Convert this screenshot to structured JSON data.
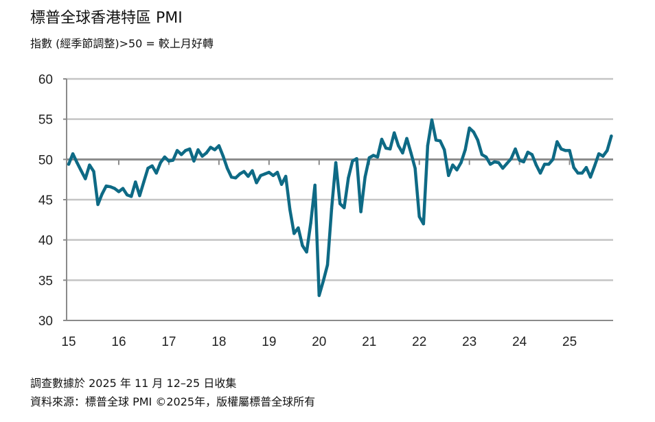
{
  "title": "標普全球香港特區 PMI",
  "subtitle": "指數  (經季節調整)>50  = 較上月好轉",
  "footnote_1": "調查數據於 2025 年 11 月 12–25 日收集",
  "footnote_2": "資料來源：標普全球 PMI ©2025年，版權屬標普全球所有",
  "chart_data": {
    "type": "line",
    "title": "標普全球香港特區 PMI",
    "ylim": [
      30,
      60
    ],
    "yticks": [
      "30",
      "35",
      "40",
      "45",
      "50",
      "55",
      "60"
    ],
    "xticks": [
      "15",
      "16",
      "17",
      "18",
      "19",
      "20",
      "21",
      "22",
      "23",
      "24",
      "25"
    ],
    "x_start": "2015-01",
    "x_end": "2025-11",
    "frequency": "monthly",
    "grid": true,
    "line_color": "#0e6a85",
    "series": [
      {
        "values": [
          49.4,
          50.7,
          49.6,
          48.6,
          47.6,
          49.3,
          48.5,
          44.4,
          45.7,
          46.7,
          46.6,
          46.4,
          46.0,
          46.4,
          45.6,
          45.4,
          47.2,
          45.5,
          47.2,
          48.9,
          49.2,
          48.3,
          49.6,
          50.3,
          49.8,
          49.9,
          51.1,
          50.6,
          51.1,
          51.3,
          49.8,
          51.2,
          50.4,
          50.8,
          51.5,
          51.2,
          51.7,
          50.4,
          48.9,
          47.8,
          47.7,
          48.2,
          48.5,
          47.9,
          48.6,
          47.1,
          48.0,
          48.2,
          48.4,
          48.0,
          48.4,
          46.9,
          47.9,
          43.8,
          40.8,
          41.5,
          39.3,
          38.5,
          42.1,
          46.8,
          33.1,
          34.9,
          36.9,
          43.9,
          49.6,
          44.5,
          44.0,
          47.7,
          49.8,
          50.1,
          43.5,
          47.8,
          50.2,
          50.5,
          50.3,
          52.5,
          51.4,
          51.3,
          53.3,
          51.7,
          50.8,
          52.6,
          50.8,
          48.9,
          42.9,
          42.0,
          51.7,
          54.9,
          52.4,
          52.3,
          51.2,
          48.0,
          49.3,
          48.7,
          49.6,
          51.2,
          53.9,
          53.4,
          52.4,
          50.6,
          50.3,
          49.4,
          49.7,
          49.6,
          48.9,
          49.5,
          50.1,
          51.3,
          49.9,
          49.7,
          50.9,
          50.6,
          49.3,
          48.3,
          49.4,
          49.4,
          50.0,
          52.2,
          51.3,
          51.1,
          51.1,
          49.0,
          48.3,
          48.3,
          49.0,
          47.8,
          49.2,
          50.7,
          50.4,
          51.1,
          52.9
        ]
      }
    ]
  }
}
